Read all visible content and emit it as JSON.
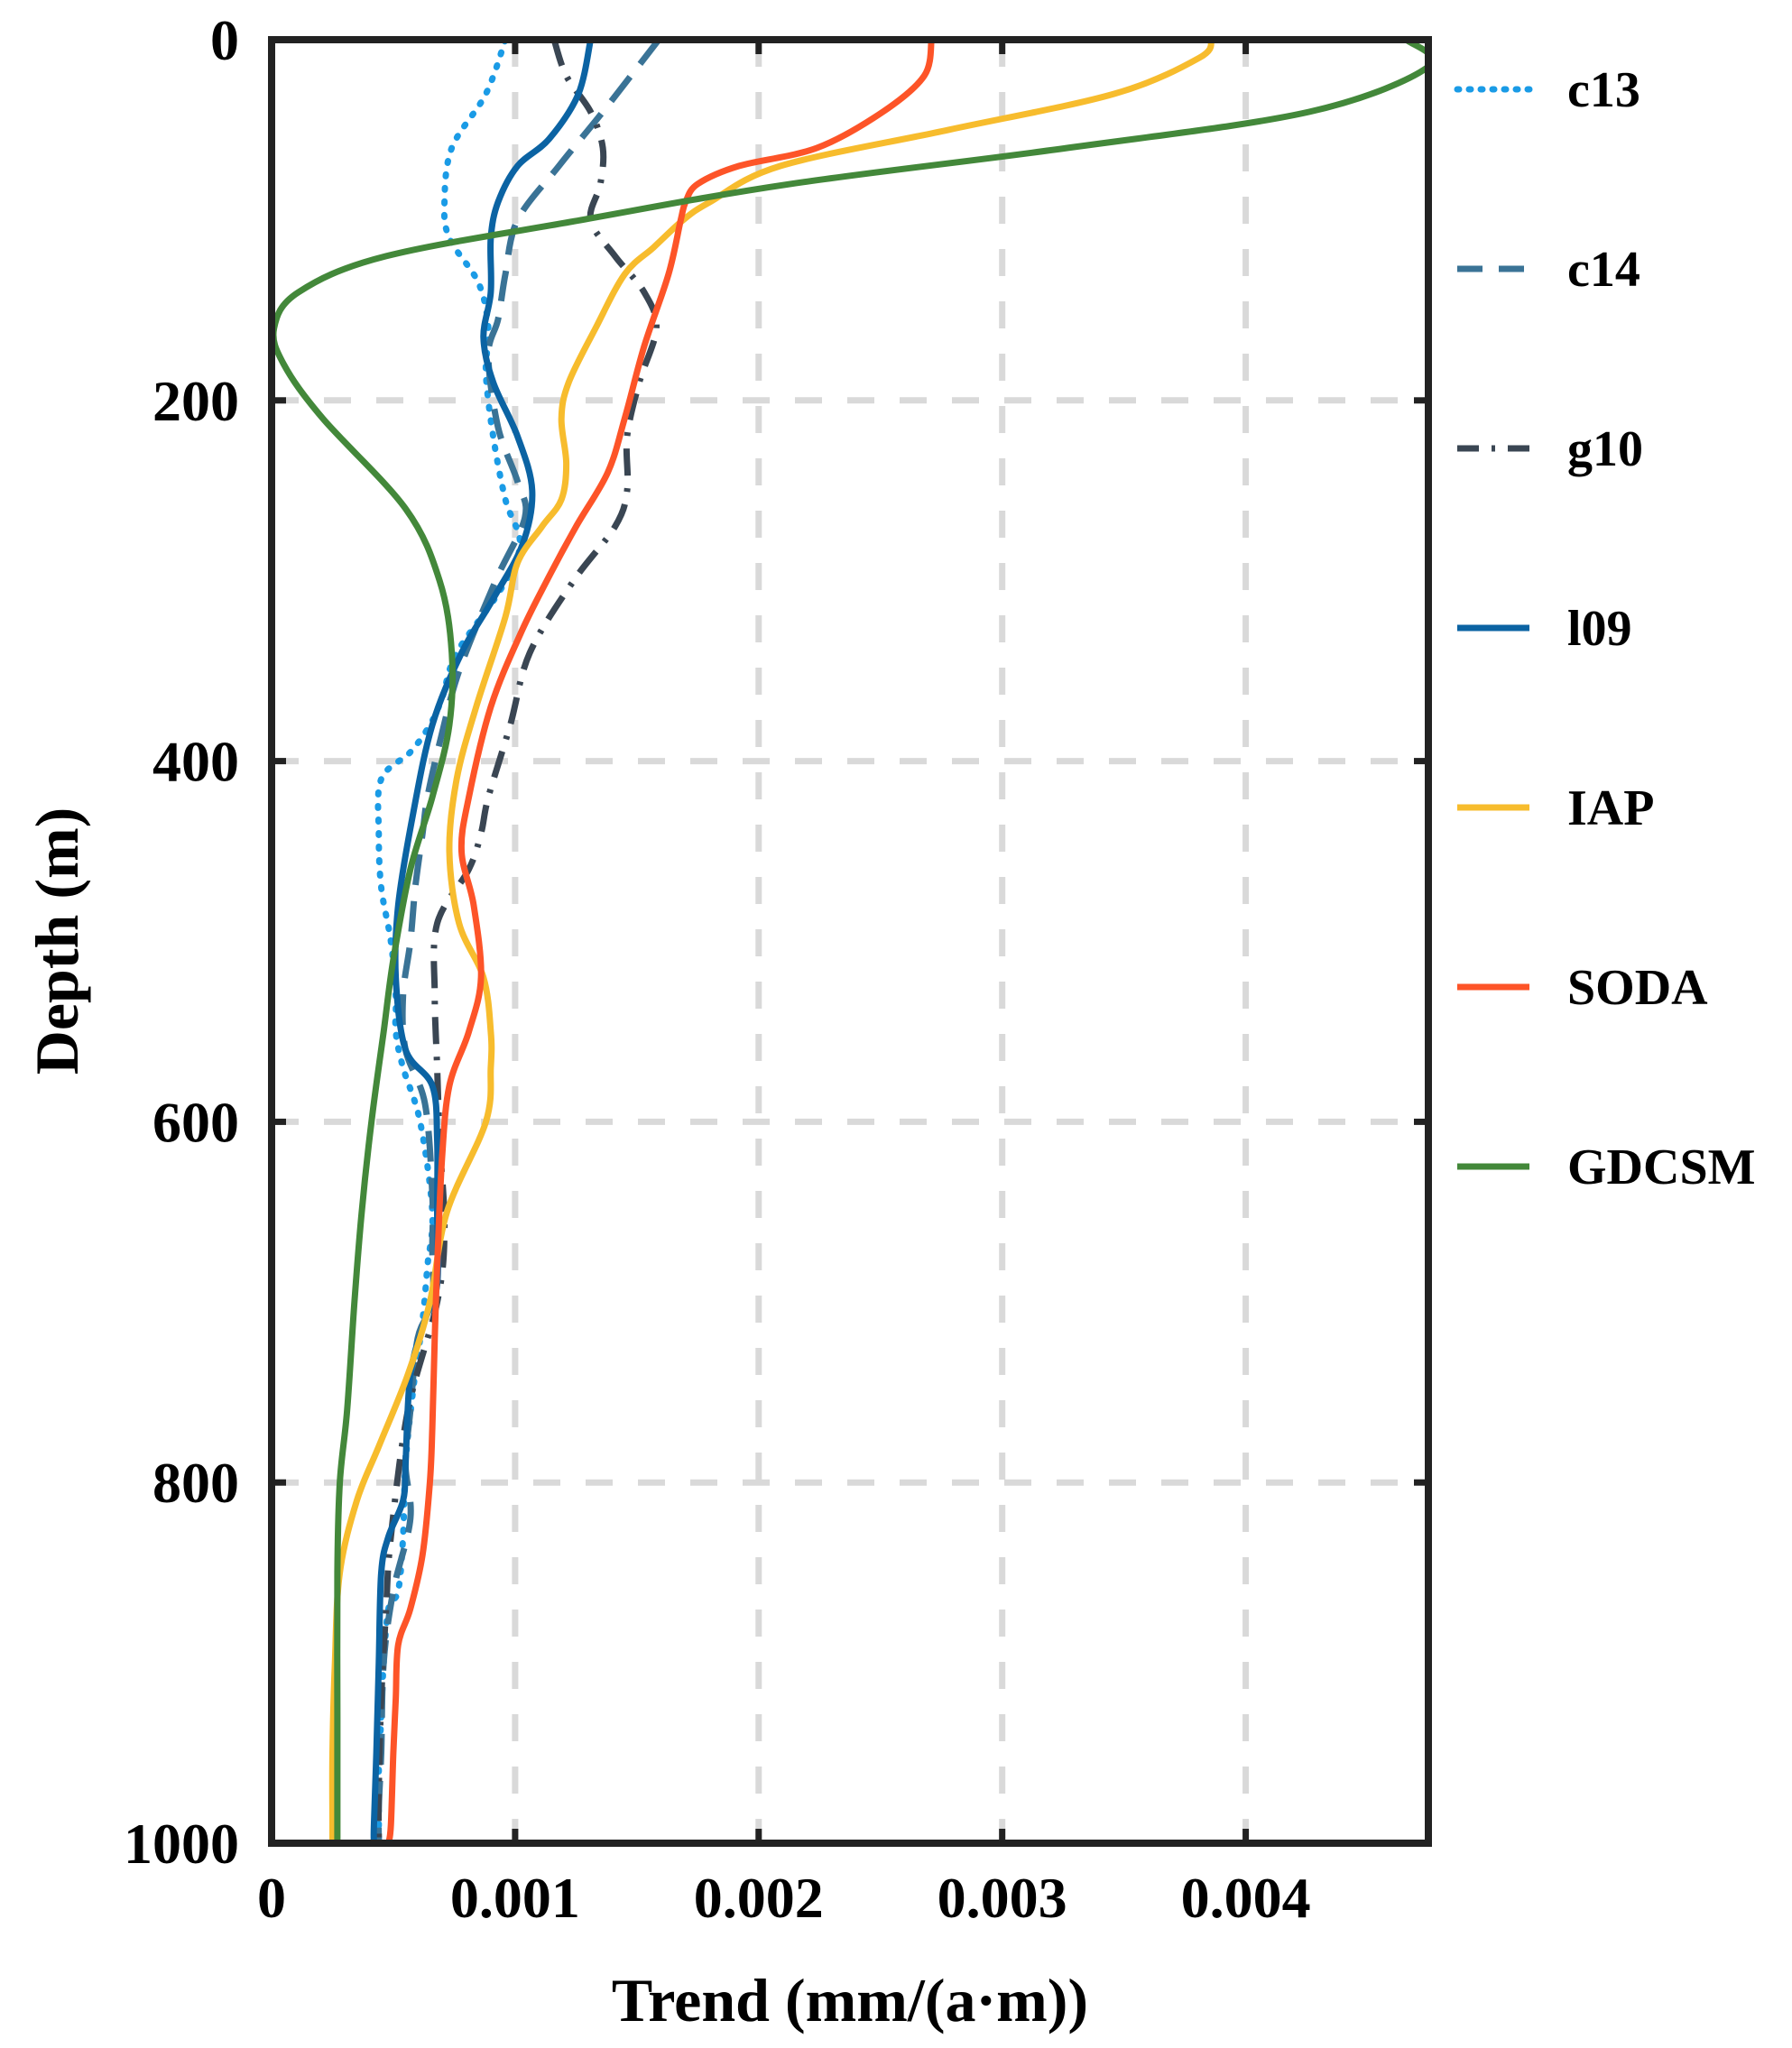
{
  "chart_data": {
    "type": "line",
    "orientation": "vertical-profile",
    "xlabel": "Trend (mm/(a·m))",
    "ylabel": "Depth (m)",
    "xlim": [
      0,
      0.00475
    ],
    "ylim": [
      0,
      1000
    ],
    "y_inverted": true,
    "grid": true,
    "legend_position": "outside-right",
    "x_ticks": [
      {
        "value": 0,
        "label": "0"
      },
      {
        "value": 0.001,
        "label": "0.001"
      },
      {
        "value": 0.002,
        "label": "0.002"
      },
      {
        "value": 0.003,
        "label": "0.003"
      },
      {
        "value": 0.004,
        "label": "0.004"
      }
    ],
    "y_ticks": [
      {
        "value": 0,
        "label": "0"
      },
      {
        "value": 200,
        "label": "200"
      },
      {
        "value": 400,
        "label": "400"
      },
      {
        "value": 600,
        "label": "600"
      },
      {
        "value": 800,
        "label": "800"
      },
      {
        "value": 1000,
        "label": "1000"
      }
    ],
    "series": [
      {
        "name": "c13",
        "color": "#1a9be6",
        "style": "dotted",
        "trend": [
          0.00096,
          0.00088,
          0.00074,
          0.00071,
          0.00073,
          0.00085,
          0.00089,
          0.00088,
          0.00091,
          0.00096,
          0.00102,
          0.00094,
          0.00076,
          0.0007,
          0.00065,
          0.00057,
          0.00045,
          0.00044,
          0.00045,
          0.00049,
          0.00051,
          0.00051,
          0.00054,
          0.00061,
          0.00066,
          0.00064,
          0.00062,
          0.00058,
          0.00055,
          0.00054,
          0.00052,
          0.00048,
          0.00046,
          0.00045,
          0.00044,
          0.00044,
          0.00044,
          0.00044
        ],
        "depth": [
          0,
          30,
          60,
          90,
          110,
          135,
          160,
          185,
          220,
          255,
          280,
          305,
          340,
          365,
          380,
          395,
          410,
          440,
          470,
          500,
          530,
          550,
          570,
          600,
          650,
          680,
          710,
          750,
          790,
          830,
          860,
          870,
          900,
          930,
          960,
          990,
          1000,
          1000
        ]
      },
      {
        "name": "c14",
        "color": "#3a7396",
        "style": "dashed",
        "trend": [
          0.00159,
          0.00136,
          0.00118,
          0.00101,
          0.00096,
          0.00093,
          0.00089,
          0.00093,
          0.00101,
          0.00104,
          0.00092,
          0.00077,
          0.00069,
          0.00064,
          0.00062,
          0.00059,
          0.00057,
          0.00054,
          0.00055,
          0.00063,
          0.00066,
          0.00066,
          0.00066,
          0.0006,
          0.00057,
          0.00055,
          0.00057,
          0.0005,
          0.00046,
          0.00045,
          0.00044,
          0.00044
        ],
        "depth": [
          0,
          40,
          70,
          100,
          130,
          155,
          175,
          215,
          245,
          265,
          300,
          350,
          390,
          420,
          440,
          470,
          500,
          530,
          560,
          590,
          640,
          670,
          700,
          720,
          760,
          790,
          820,
          860,
          900,
          950,
          980,
          1000
        ]
      },
      {
        "name": "g10",
        "color": "#3a4653",
        "style": "dashdot",
        "trend": [
          0.00116,
          0.00121,
          0.00131,
          0.00136,
          0.00135,
          0.00131,
          0.00141,
          0.00153,
          0.00158,
          0.00151,
          0.00146,
          0.00146,
          0.00141,
          0.00124,
          0.00106,
          0.00098,
          0.00089,
          0.00086,
          0.00081,
          0.00068,
          0.00067,
          0.00068,
          0.00069,
          0.00071,
          0.00068,
          0.00056,
          0.00049,
          0.00047,
          0.00045,
          0.00044,
          0.00044
        ],
        "depth": [
          0,
          20,
          40,
          60,
          80,
          100,
          120,
          140,
          160,
          190,
          220,
          250,
          270,
          300,
          340,
          380,
          420,
          440,
          460,
          490,
          530,
          570,
          610,
          660,
          700,
          760,
          830,
          870,
          920,
          970,
          1000
        ]
      },
      {
        "name": "l09",
        "color": "#0b63a3",
        "style": "solid",
        "trend": [
          0.00131,
          0.00126,
          0.00114,
          0.00101,
          0.00093,
          0.0009,
          0.0009,
          0.00087,
          0.00091,
          0.00101,
          0.00107,
          0.00103,
          0.00091,
          0.00078,
          0.00066,
          0.00058,
          0.00052,
          0.00051,
          0.00055,
          0.00066,
          0.00068,
          0.00068,
          0.00068,
          0.00063,
          0.00057,
          0.00055,
          0.00054,
          0.00048,
          0.00045,
          0.00044,
          0.00043,
          0.00042,
          0.00042
        ],
        "depth": [
          0,
          30,
          55,
          70,
          90,
          110,
          140,
          165,
          190,
          220,
          250,
          280,
          310,
          340,
          380,
          430,
          480,
          520,
          560,
          580,
          610,
          650,
          690,
          710,
          740,
          790,
          810,
          830,
          850,
          900,
          950,
          990,
          1000
        ]
      },
      {
        "name": "IAP",
        "color": "#f7bc2d",
        "style": "solid",
        "trend": [
          0.00386,
          0.00381,
          0.00346,
          0.00278,
          0.00209,
          0.0018,
          0.00169,
          0.00157,
          0.00145,
          0.00133,
          0.00122,
          0.00119,
          0.00121,
          0.00119,
          0.00111,
          0.00101,
          0.00096,
          0.00084,
          0.00076,
          0.00073,
          0.00077,
          0.00087,
          0.0009,
          0.0009,
          0.00088,
          0.00072,
          0.00065,
          0.00056,
          0.00044,
          0.00035,
          0.00028,
          0.00026,
          0.00025,
          0.00025,
          0.00025
        ],
        "depth": [
          0,
          10,
          30,
          50,
          70,
          90,
          100,
          115,
          130,
          160,
          190,
          210,
          235,
          255,
          270,
          290,
          320,
          370,
          410,
          450,
          490,
          520,
          550,
          570,
          600,
          650,
          700,
          740,
          780,
          810,
          850,
          900,
          950,
          990,
          1000
        ]
      },
      {
        "name": "SODA",
        "color": "#fd5428",
        "style": "solid",
        "trend": [
          0.00271,
          0.00268,
          0.00251,
          0.00224,
          0.00192,
          0.00175,
          0.0017,
          0.00168,
          0.00163,
          0.00153,
          0.00145,
          0.00138,
          0.00125,
          0.00113,
          0.00102,
          0.0009,
          0.00081,
          0.00078,
          0.00083,
          0.00086,
          0.00081,
          0.00073,
          0.0007,
          0.00068,
          0.00067,
          0.00066,
          0.00065,
          0.00062,
          0.00057,
          0.00052,
          0.00051,
          0.0005,
          0.00049,
          0.00048
        ],
        "depth": [
          0,
          20,
          40,
          60,
          70,
          80,
          90,
          100,
          130,
          170,
          210,
          240,
          270,
          300,
          330,
          370,
          420,
          450,
          480,
          520,
          550,
          580,
          620,
          680,
          720,
          770,
          800,
          840,
          870,
          890,
          920,
          950,
          990,
          1000
        ]
      },
      {
        "name": "GDCSM",
        "color": "#43883a",
        "style": "solid",
        "trend": [
          0.00466,
          0.00475,
          0.00426,
          0.00327,
          0.00213,
          0.00127,
          0.00047,
          0.00011,
          1e-05,
          5e-05,
          0.00021,
          0.00055,
          0.00069,
          0.00074,
          0.00073,
          0.00066,
          0.00057,
          0.0005,
          0.00046,
          0.00041,
          0.00037,
          0.00034,
          0.00031,
          0.00028,
          0.00027,
          0.00027,
          0.00027
        ],
        "depth": [
          0,
          15,
          40,
          60,
          80,
          100,
          120,
          140,
          160,
          180,
          210,
          260,
          300,
          340,
          380,
          420,
          460,
          510,
          550,
          600,
          650,
          700,
          760,
          800,
          850,
          930,
          1000
        ]
      }
    ]
  }
}
